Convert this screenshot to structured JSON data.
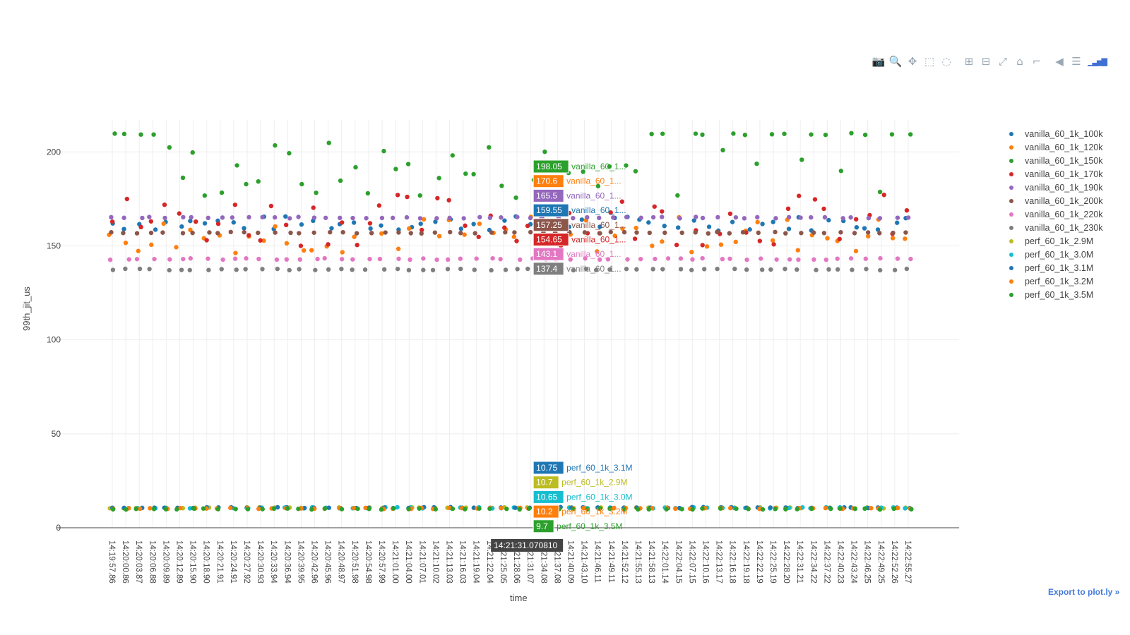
{
  "modebar": {
    "buttons": [
      {
        "name": "camera-icon",
        "glyph": "📷"
      },
      {
        "name": "zoom-icon",
        "glyph": "🔍"
      },
      {
        "name": "pan-icon",
        "glyph": "✥"
      },
      {
        "name": "box-select-icon",
        "glyph": "⬚"
      },
      {
        "name": "lasso-select-icon",
        "glyph": "◌"
      },
      {
        "name": "zoom-in-icon",
        "glyph": "⊞"
      },
      {
        "name": "zoom-out-icon",
        "glyph": "⊟"
      },
      {
        "name": "autoscale-icon",
        "glyph": "⤢"
      },
      {
        "name": "reset-axes-icon",
        "glyph": "⌂"
      },
      {
        "name": "spike-lines-icon",
        "glyph": "⌐"
      },
      {
        "name": "hover-closest-icon",
        "glyph": "◀"
      },
      {
        "name": "hover-compare-icon",
        "glyph": "☰"
      },
      {
        "name": "plotly-logo-icon",
        "glyph": "▁▃▅▇"
      }
    ]
  },
  "export_link": "Export to plot.ly »",
  "chart_data": {
    "type": "scatter",
    "xlabel": "time",
    "ylabel": "99th_jit_us",
    "ylim": [
      0,
      217
    ],
    "yticks": [
      0,
      50,
      100,
      150,
      200
    ],
    "x_tick_labels": [
      "14:19:57.86",
      "14:20:00.86",
      "14:20:03.87",
      "14:20:06.88",
      "14:20:09.89",
      "14:20:12.89",
      "14:20:15.90",
      "14:20:18.90",
      "14:20:21.91",
      "14:20:24.91",
      "14:20:27.92",
      "14:20:30.93",
      "14:20:33.94",
      "14:20:36.94",
      "14:20:39.95",
      "14:20:42.96",
      "14:20:45.96",
      "14:20:48.97",
      "14:20:51.98",
      "14:20:54.98",
      "14:20:57.99",
      "14:21:01.00",
      "14:21:04.00",
      "14:21:07.01",
      "14:21:10.02",
      "14:21:13.03",
      "14:21:16.03",
      "14:21:19.04",
      "14:21:22.04",
      "14:21:25.05",
      "14:21:28.06",
      "14:21:31.07",
      "14:21:34.08",
      "14:21:37.08",
      "14:21:40.09",
      "14:21:43.10",
      "14:21:46.11",
      "14:21:49.11",
      "14:21:52.12",
      "14:21:55.13",
      "14:21:58.13",
      "14:22:01.14",
      "14:22:04.15",
      "14:22:07.15",
      "14:22:10.16",
      "14:22:13.17",
      "14:22:16.18",
      "14:22:19.18",
      "14:22:22.19",
      "14:22:25.19",
      "14:22:28.20",
      "14:22:31.21",
      "14:22:34.22",
      "14:22:37.22",
      "14:22:40.23",
      "14:22:43.24",
      "14:22:46.25",
      "14:22:49.25",
      "14:22:52.26",
      "14:22:55.27"
    ],
    "hover_x_label": "14:21:31.070810",
    "hover_index": 31,
    "grid": true,
    "legend_position": "right",
    "series": [
      {
        "name": "vanilla_60_1k_100k",
        "color": "#1f77b4",
        "base": 162,
        "noise": 4,
        "hover": "159.55",
        "hover_label": "vanilla_60_1...",
        "hover_y": 159.55
      },
      {
        "name": "vanilla_60_1k_120k",
        "color": "#ff7f0e",
        "base": 156,
        "noise": 10,
        "hover": "170.6",
        "hover_label": "vanilla_60_1...",
        "hover_y": 170.6
      },
      {
        "name": "vanilla_60_1k_150k",
        "color": "#2ca02c",
        "base": 190,
        "noise": 16,
        "hover": "198.05",
        "hover_label": "vanilla_60_1...",
        "hover_y": 198.05
      },
      {
        "name": "vanilla_60_1k_170k",
        "color": "#d62728",
        "base": 164,
        "noise": 14,
        "hover": "154.65",
        "hover_label": "vanilla_60_1...",
        "hover_y": 154.65
      },
      {
        "name": "vanilla_60_1k_190k",
        "color": "#9467bd",
        "base": 165,
        "noise": 0.4,
        "hover": "165.5",
        "hover_label": "vanilla_60_1...",
        "hover_y": 165.5
      },
      {
        "name": "vanilla_60_1k_200k",
        "color": "#8c564b",
        "base": 157,
        "noise": 0.4,
        "hover": "157.25",
        "hover_label": "vanilla_60_1...",
        "hover_y": 157.25
      },
      {
        "name": "vanilla_60_1k_220k",
        "color": "#e377c2",
        "base": 143,
        "noise": 0.4,
        "hover": "143.1",
        "hover_label": "vanilla_60_1...",
        "hover_y": 143.1
      },
      {
        "name": "vanilla_60_1k_230k",
        "color": "#7f7f7f",
        "base": 137.4,
        "noise": 0.4,
        "hover": "137.4",
        "hover_label": "vanilla_60_1...",
        "hover_y": 137.4
      },
      {
        "name": "perf_60_1k_2.9M",
        "color": "#bcbd22",
        "base": 10.6,
        "noise": 0.3,
        "hover": "10.7",
        "hover_label": "perf_60_1k_2.9M",
        "hover_y": 10.7
      },
      {
        "name": "perf_60_1k_3.0M",
        "color": "#17becf",
        "base": 10.6,
        "noise": 0.3,
        "hover": "10.65",
        "hover_label": "perf_60_1k_3.0M",
        "hover_y": 10.65
      },
      {
        "name": "perf_60_1k_3.1M",
        "color": "#1f77b4",
        "base": 10.7,
        "noise": 0.3,
        "hover": "10.75",
        "hover_label": "perf_60_1k_3.1M",
        "hover_y": 10.75
      },
      {
        "name": "perf_60_1k_3.2M",
        "color": "#ff7f0e",
        "base": 10.3,
        "noise": 0.3,
        "hover": "10.2",
        "hover_label": "perf_60_1k_3.2M",
        "hover_y": 10.2
      },
      {
        "name": "perf_60_1k_3.5M",
        "color": "#2ca02c",
        "base": 10.0,
        "noise": 0.3,
        "hover": "9.7",
        "hover_label": "perf_60_1k_3.5M",
        "hover_y": 9.7
      }
    ],
    "points_per_series": 60
  }
}
